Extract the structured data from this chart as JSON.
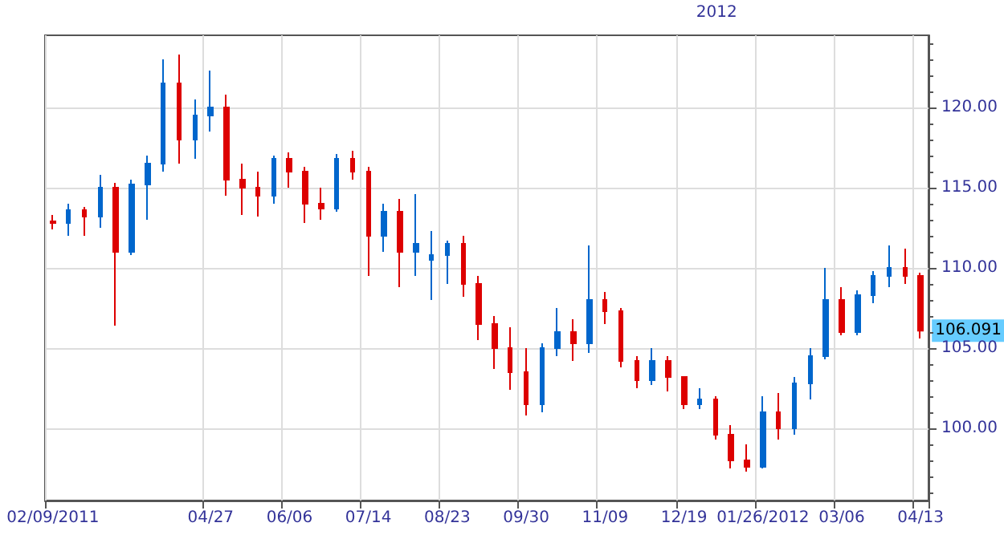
{
  "chart_data": {
    "type": "candlestick",
    "categories": [
      "02/09/2011",
      null,
      null,
      null,
      null,
      null,
      null,
      null,
      null,
      null,
      "04/27",
      null,
      null,
      null,
      null,
      "06/06",
      null,
      null,
      null,
      null,
      "07/14",
      null,
      null,
      null,
      null,
      "08/23",
      null,
      null,
      null,
      null,
      "09/30",
      null,
      null,
      null,
      null,
      "11/09",
      null,
      null,
      null,
      null,
      "12/19",
      null,
      null,
      null,
      null,
      "01/26/2012",
      null,
      null,
      null,
      null,
      "03/06",
      null,
      null,
      null,
      null,
      "04/13"
    ],
    "ohlc": [
      [
        112.9,
        113.3,
        112.4,
        112.8
      ],
      [
        112.8,
        114.0,
        112.0,
        113.6
      ],
      [
        113.6,
        113.8,
        112.0,
        113.2
      ],
      [
        113.2,
        115.8,
        112.5,
        115.0
      ],
      [
        115.0,
        115.3,
        106.4,
        111.0
      ],
      [
        111.0,
        115.5,
        110.8,
        115.2
      ],
      [
        115.2,
        117.0,
        113.0,
        116.5
      ],
      [
        116.5,
        123.0,
        116.0,
        121.5
      ],
      [
        121.5,
        123.3,
        116.5,
        118.0
      ],
      [
        118.0,
        120.5,
        116.8,
        119.5
      ],
      [
        119.5,
        122.3,
        118.5,
        120.0
      ],
      [
        120.0,
        120.8,
        114.5,
        115.5
      ],
      [
        115.5,
        116.5,
        113.3,
        115.0
      ],
      [
        115.0,
        116.0,
        113.2,
        114.5
      ],
      [
        114.5,
        117.0,
        114.0,
        116.8
      ],
      [
        116.8,
        117.2,
        115.0,
        116.0
      ],
      [
        116.0,
        116.3,
        112.8,
        114.0
      ],
      [
        114.0,
        115.0,
        113.0,
        113.7
      ],
      [
        113.7,
        117.1,
        113.5,
        116.8
      ],
      [
        116.8,
        117.3,
        115.5,
        116.0
      ],
      [
        116.0,
        116.3,
        109.5,
        112.0
      ],
      [
        112.0,
        114.0,
        111.0,
        113.5
      ],
      [
        113.5,
        114.3,
        108.8,
        111.0
      ],
      [
        111.0,
        114.6,
        109.5,
        111.5
      ],
      [
        110.5,
        112.3,
        108.0,
        110.8
      ],
      [
        110.8,
        111.7,
        109.0,
        111.5
      ],
      [
        111.5,
        112.0,
        108.2,
        109.0
      ],
      [
        109.0,
        109.5,
        105.5,
        106.5
      ],
      [
        106.5,
        107.0,
        103.7,
        105.0
      ],
      [
        105.0,
        106.3,
        102.4,
        103.5
      ],
      [
        103.5,
        105.0,
        100.8,
        101.5
      ],
      [
        101.5,
        105.3,
        101.0,
        105.0
      ],
      [
        105.0,
        107.5,
        104.5,
        106.0
      ],
      [
        106.0,
        106.8,
        104.2,
        105.3
      ],
      [
        105.3,
        111.4,
        104.7,
        108.0
      ],
      [
        108.0,
        108.5,
        106.5,
        107.3
      ],
      [
        107.3,
        107.5,
        103.8,
        104.2
      ],
      [
        104.2,
        104.5,
        102.5,
        103.0
      ],
      [
        103.0,
        105.0,
        102.7,
        104.2
      ],
      [
        104.2,
        104.5,
        102.3,
        103.2
      ],
      [
        103.2,
        103.2,
        101.2,
        101.5
      ],
      [
        101.5,
        102.5,
        101.2,
        101.8
      ],
      [
        101.8,
        102.0,
        99.3,
        99.6
      ],
      [
        99.6,
        100.2,
        97.5,
        98.0
      ],
      [
        98.0,
        99.0,
        97.3,
        97.6
      ],
      [
        97.6,
        102.0,
        97.5,
        101.0
      ],
      [
        101.0,
        102.2,
        99.3,
        100.0
      ],
      [
        100.0,
        103.2,
        99.6,
        102.8
      ],
      [
        102.8,
        105.0,
        101.8,
        104.5
      ],
      [
        104.5,
        110.0,
        104.3,
        108.0
      ],
      [
        108.0,
        108.8,
        105.8,
        106.0
      ],
      [
        106.0,
        108.6,
        105.8,
        108.3
      ],
      [
        108.3,
        109.8,
        107.8,
        109.5
      ],
      [
        109.5,
        111.4,
        108.8,
        110.0
      ],
      [
        110.0,
        111.2,
        109.0,
        109.5
      ],
      [
        109.5,
        109.7,
        105.6,
        106.091
      ]
    ],
    "colors": [
      "#dd0000",
      "#0066cc",
      "#dd0000",
      "#0066cc",
      "#dd0000",
      "#0066cc",
      "#0066cc",
      "#0066cc",
      "#dd0000",
      "#0066cc",
      "#0066cc",
      "#dd0000",
      "#dd0000",
      "#dd0000",
      "#0066cc",
      "#dd0000",
      "#dd0000",
      "#dd0000",
      "#0066cc",
      "#dd0000",
      "#dd0000",
      "#0066cc",
      "#dd0000",
      "#0066cc",
      "#0066cc",
      "#0066cc",
      "#dd0000",
      "#dd0000",
      "#dd0000",
      "#dd0000",
      "#dd0000",
      "#0066cc",
      "#0066cc",
      "#dd0000",
      "#0066cc",
      "#dd0000",
      "#dd0000",
      "#dd0000",
      "#0066cc",
      "#dd0000",
      "#dd0000",
      "#0066cc",
      "#dd0000",
      "#dd0000",
      "#dd0000",
      "#0066cc",
      "#dd0000",
      "#0066cc",
      "#0066cc",
      "#0066cc",
      "#dd0000",
      "#0066cc",
      "#0066cc",
      "#0066cc",
      "#dd0000",
      "#dd0000"
    ],
    "ylim": [
      95.5,
      124.5
    ],
    "yticks": [
      {
        "value": 100,
        "label": "100.00"
      },
      {
        "value": 105,
        "label": "105.00"
      },
      {
        "value": 110,
        "label": "110.00"
      },
      {
        "value": 115,
        "label": "115.00"
      },
      {
        "value": 120,
        "label": "120.00"
      }
    ],
    "grid": true,
    "annotations": [
      "2012",
      {
        "text": "106.091",
        "x": "04/13",
        "y": 106.091
      }
    ]
  }
}
